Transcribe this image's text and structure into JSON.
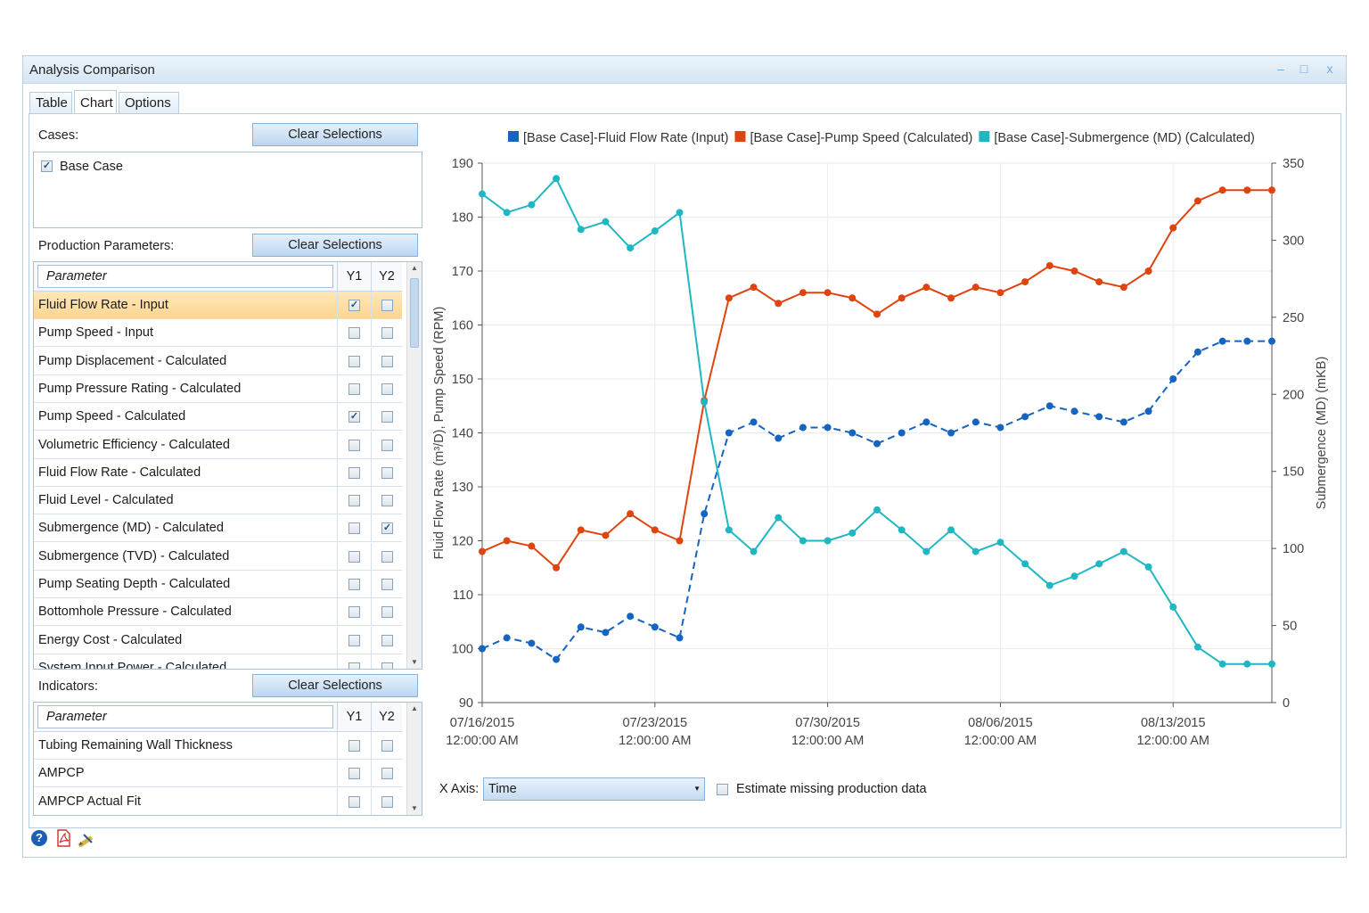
{
  "window": {
    "title": "Analysis Comparison",
    "min": "–",
    "max": "□",
    "close": "x"
  },
  "tabs": [
    {
      "label": "Table"
    },
    {
      "label": "Chart"
    },
    {
      "label": "Options"
    }
  ],
  "cases": {
    "label": "Cases:",
    "clear": "Clear Selections",
    "items": [
      {
        "label": "Base Case",
        "checked": true
      }
    ]
  },
  "production": {
    "label": "Production Parameters:",
    "clear": "Clear Selections",
    "placeholder": "Parameter",
    "col_y1": "Y1",
    "col_y2": "Y2",
    "rows": [
      {
        "name": "Fluid Flow Rate - Input",
        "y1": true,
        "y2": false,
        "selected": true
      },
      {
        "name": "Pump Speed - Input",
        "y1": false,
        "y2": false
      },
      {
        "name": "Pump Displacement - Calculated",
        "y1": false,
        "y2": false
      },
      {
        "name": "Pump Pressure Rating - Calculated",
        "y1": false,
        "y2": false
      },
      {
        "name": "Pump Speed - Calculated",
        "y1": true,
        "y2": false
      },
      {
        "name": "Volumetric Efficiency - Calculated",
        "y1": false,
        "y2": false
      },
      {
        "name": "Fluid Flow Rate - Calculated",
        "y1": false,
        "y2": false
      },
      {
        "name": "Fluid Level - Calculated",
        "y1": false,
        "y2": false
      },
      {
        "name": "Submergence (MD) - Calculated",
        "y1": false,
        "y2": true
      },
      {
        "name": "Submergence (TVD) - Calculated",
        "y1": false,
        "y2": false
      },
      {
        "name": "Pump Seating Depth - Calculated",
        "y1": false,
        "y2": false
      },
      {
        "name": "Bottomhole Pressure - Calculated",
        "y1": false,
        "y2": false
      },
      {
        "name": "Energy Cost - Calculated",
        "y1": false,
        "y2": false
      },
      {
        "name": "System Input Power - Calculated",
        "y1": false,
        "y2": false
      }
    ]
  },
  "indicators": {
    "label": "Indicators:",
    "clear": "Clear Selections",
    "placeholder": "Parameter",
    "col_y1": "Y1",
    "col_y2": "Y2",
    "rows": [
      {
        "name": "Tubing Remaining Wall Thickness",
        "y1": false,
        "y2": false
      },
      {
        "name": "AMPCP",
        "y1": false,
        "y2": false
      },
      {
        "name": "AMPCP Actual Fit",
        "y1": false,
        "y2": false
      }
    ]
  },
  "xaxis_control": {
    "label": "X Axis:",
    "value": "Time",
    "estimate_label": "Estimate missing production data",
    "estimate_checked": false
  },
  "bottom_icons": [
    "help-icon",
    "pdf-icon",
    "edit-icon"
  ],
  "chart_data": {
    "type": "line",
    "ylabel": "Fluid Flow Rate (m³/D), Pump Speed (RPM)",
    "y2label": "Submergence (MD) (mKB)",
    "ylim": [
      90,
      190
    ],
    "y2lim": [
      0,
      350
    ],
    "yticks": [
      90,
      100,
      110,
      120,
      130,
      140,
      150,
      160,
      170,
      180,
      190
    ],
    "y2ticks": [
      0,
      50,
      100,
      150,
      200,
      250,
      300,
      350
    ],
    "xlim": [
      "2015-07-16",
      "2015-08-17"
    ],
    "xticks": [
      {
        "x": "2015-07-16",
        "label1": "07/16/2015",
        "label2": "12:00:00 AM"
      },
      {
        "x": "2015-07-23",
        "label1": "07/23/2015",
        "label2": "12:00:00 AM"
      },
      {
        "x": "2015-07-30",
        "label1": "07/30/2015",
        "label2": "12:00:00 AM"
      },
      {
        "x": "2015-08-06",
        "label1": "08/06/2015",
        "label2": "12:00:00 AM"
      },
      {
        "x": "2015-08-13",
        "label1": "08/13/2015",
        "label2": "12:00:00 AM"
      }
    ],
    "x": [
      "2015-07-16",
      "2015-07-17",
      "2015-07-18",
      "2015-07-19",
      "2015-07-20",
      "2015-07-21",
      "2015-07-22",
      "2015-07-23",
      "2015-07-24",
      "2015-07-25",
      "2015-07-26",
      "2015-07-27",
      "2015-07-28",
      "2015-07-29",
      "2015-07-30",
      "2015-07-31",
      "2015-08-01",
      "2015-08-02",
      "2015-08-03",
      "2015-08-04",
      "2015-08-05",
      "2015-08-06",
      "2015-08-07",
      "2015-08-08",
      "2015-08-09",
      "2015-08-10",
      "2015-08-11",
      "2015-08-12",
      "2015-08-13",
      "2015-08-14",
      "2015-08-15",
      "2015-08-16",
      "2015-08-17"
    ],
    "legend_position": "top",
    "series": [
      {
        "name": "[Base Case]-Fluid Flow Rate (Input)",
        "axis": "left",
        "color": "#1565c0",
        "dashed": true,
        "values": [
          100,
          102,
          101,
          98,
          104,
          103,
          106,
          104,
          102,
          125,
          140,
          142,
          139,
          141,
          141,
          140,
          138,
          140,
          142,
          140,
          142,
          141,
          143,
          145,
          144,
          143,
          142,
          144,
          150,
          155,
          157,
          157,
          157
        ]
      },
      {
        "name": "[Base Case]-Pump Speed (Calculated)",
        "axis": "left",
        "color": "#e0440e",
        "dashed": false,
        "values": [
          118,
          120,
          119,
          115,
          122,
          121,
          125,
          122,
          120,
          146,
          165,
          167,
          164,
          166,
          166,
          165,
          162,
          165,
          167,
          165,
          167,
          166,
          168,
          171,
          170,
          168,
          167,
          170,
          178,
          183,
          185,
          185,
          185
        ]
      },
      {
        "name": "[Base Case]-Submergence (MD) (Calculated)",
        "axis": "right",
        "color": "#1fb8c2",
        "dashed": false,
        "values": [
          330,
          318,
          323,
          340,
          307,
          312,
          295,
          306,
          318,
          195,
          112,
          98,
          120,
          105,
          105,
          110,
          125,
          112,
          98,
          112,
          98,
          104,
          90,
          76,
          82,
          90,
          98,
          88,
          62,
          36,
          25,
          25,
          25
        ]
      }
    ]
  }
}
